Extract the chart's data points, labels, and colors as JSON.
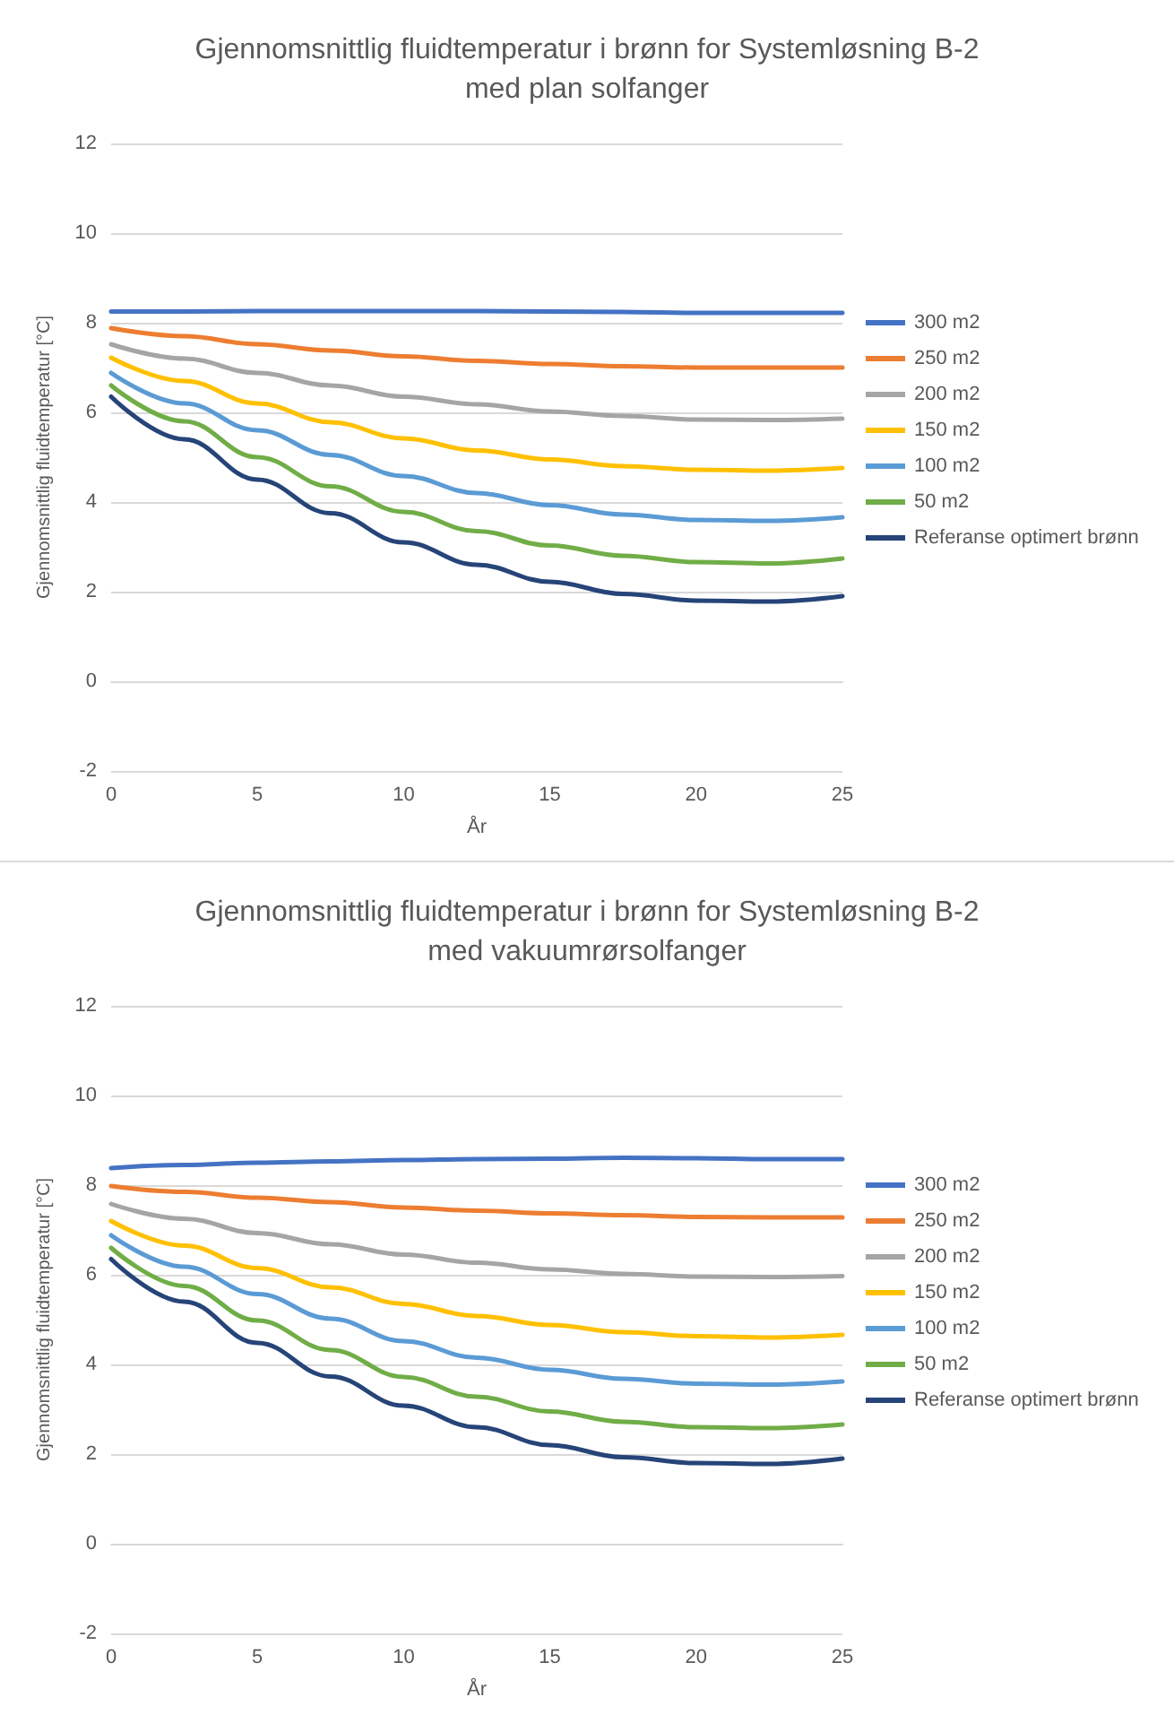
{
  "chart_data": [
    {
      "type": "line",
      "title": "Gjennomsnittlig fluidtemperatur i brønn for Systemløsning B-2\nmed plan solfanger",
      "xlabel": "År",
      "ylabel": "Gjennomsnittlig fluidtemperatur [°C]",
      "x": [
        0,
        2.5,
        5,
        7.5,
        10,
        12.5,
        15,
        17.5,
        20,
        22.5,
        25
      ],
      "series": [
        {
          "name": "300 m2",
          "color": "#4472c4",
          "values": [
            8.25,
            8.25,
            8.26,
            8.26,
            8.26,
            8.26,
            8.25,
            8.24,
            8.22,
            8.22,
            8.22
          ]
        },
        {
          "name": "250 m2",
          "color": "#ed7d31",
          "values": [
            7.88,
            7.7,
            7.52,
            7.38,
            7.25,
            7.15,
            7.08,
            7.03,
            7.0,
            7.0,
            7.0
          ]
        },
        {
          "name": "200 m2",
          "color": "#a5a5a5",
          "values": [
            7.52,
            7.2,
            6.88,
            6.6,
            6.35,
            6.18,
            6.02,
            5.92,
            5.84,
            5.83,
            5.86
          ]
        },
        {
          "name": "150 m2",
          "color": "#ffc000",
          "values": [
            7.22,
            6.7,
            6.2,
            5.78,
            5.42,
            5.15,
            4.95,
            4.8,
            4.72,
            4.7,
            4.76
          ]
        },
        {
          "name": "100 m2",
          "color": "#5b9bd5",
          "values": [
            6.88,
            6.2,
            5.6,
            5.05,
            4.58,
            4.2,
            3.93,
            3.72,
            3.6,
            3.58,
            3.66
          ]
        },
        {
          "name": "50 m2",
          "color": "#70ad47",
          "values": [
            6.6,
            5.8,
            5.0,
            4.35,
            3.78,
            3.35,
            3.03,
            2.8,
            2.66,
            2.63,
            2.74
          ]
        },
        {
          "name": "Referanse optimert brønn",
          "color": "#264478",
          "values": [
            6.35,
            5.4,
            4.5,
            3.75,
            3.1,
            2.6,
            2.22,
            1.95,
            1.8,
            1.78,
            1.9
          ]
        }
      ],
      "xlim": [
        0,
        25
      ],
      "xticks": [
        0,
        5,
        10,
        15,
        20,
        25
      ],
      "ylim": [
        -2,
        12
      ],
      "yticks": [
        -2,
        0,
        2,
        4,
        6,
        8,
        10,
        12
      ],
      "grid": "y",
      "legend": "right",
      "marker": "none",
      "line_style": "solid"
    },
    {
      "type": "line",
      "title": "Gjennomsnittlig fluidtemperatur i brønn for Systemløsning B-2\nmed vakuumrørsolfanger",
      "xlabel": "År",
      "ylabel": "Gjennomsnittlig fluidtemperatur [°C]",
      "x": [
        0,
        2.5,
        5,
        7.5,
        10,
        12.5,
        15,
        17.5,
        20,
        22.5,
        25
      ],
      "series": [
        {
          "name": "300 m2",
          "color": "#4472c4",
          "values": [
            8.38,
            8.45,
            8.5,
            8.53,
            8.56,
            8.58,
            8.59,
            8.61,
            8.6,
            8.58,
            8.58
          ]
        },
        {
          "name": "250 m2",
          "color": "#ed7d31",
          "values": [
            7.98,
            7.85,
            7.72,
            7.62,
            7.5,
            7.43,
            7.37,
            7.33,
            7.29,
            7.28,
            7.28
          ]
        },
        {
          "name": "200 m2",
          "color": "#a5a5a5",
          "values": [
            7.58,
            7.25,
            6.93,
            6.68,
            6.45,
            6.27,
            6.12,
            6.02,
            5.96,
            5.95,
            5.97
          ]
        },
        {
          "name": "150 m2",
          "color": "#ffc000",
          "values": [
            7.2,
            6.65,
            6.15,
            5.72,
            5.35,
            5.08,
            4.88,
            4.72,
            4.63,
            4.6,
            4.66
          ]
        },
        {
          "name": "100 m2",
          "color": "#5b9bd5",
          "values": [
            6.88,
            6.18,
            5.57,
            5.02,
            4.52,
            4.15,
            3.88,
            3.68,
            3.57,
            3.55,
            3.62
          ]
        },
        {
          "name": "50 m2",
          "color": "#70ad47",
          "values": [
            6.6,
            5.75,
            4.98,
            4.32,
            3.72,
            3.28,
            2.95,
            2.72,
            2.6,
            2.58,
            2.66
          ]
        },
        {
          "name": "Referanse optimert brønn",
          "color": "#264478",
          "values": [
            6.35,
            5.4,
            4.48,
            3.73,
            3.08,
            2.6,
            2.2,
            1.93,
            1.8,
            1.78,
            1.9
          ]
        }
      ],
      "xlim": [
        0,
        25
      ],
      "xticks": [
        0,
        5,
        10,
        15,
        20,
        25
      ],
      "ylim": [
        -2,
        12
      ],
      "yticks": [
        -2,
        0,
        2,
        4,
        6,
        8,
        10,
        12
      ],
      "grid": "y",
      "legend": "right",
      "marker": "none",
      "line_style": "solid"
    }
  ]
}
